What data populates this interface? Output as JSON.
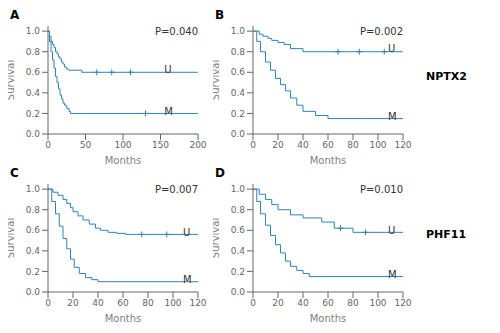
{
  "chart_data": [
    {
      "type": "step",
      "title": "A",
      "x_label": "Months",
      "y_label": "Survival",
      "xlim": [
        0,
        200
      ],
      "xticks": [
        0,
        50,
        100,
        150,
        200
      ],
      "ylim": [
        0.0,
        1.05
      ],
      "yticks": [
        {
          "value": 0.0,
          "label": "0.0"
        },
        0.2,
        0.4,
        0.6,
        0.8,
        {
          "value": 1.0,
          "label": "1.0"
        }
      ],
      "series": [
        {
          "x": [
            0,
            2,
            4,
            6,
            8,
            10,
            12,
            14,
            16,
            18,
            20,
            22,
            25,
            28,
            32,
            38,
            45,
            200
          ],
          "values": [
            1.0,
            0.95,
            0.9,
            0.87,
            0.84,
            0.8,
            0.78,
            0.75,
            0.73,
            0.7,
            0.68,
            0.65,
            0.63,
            0.62,
            0.62,
            0.62,
            0.6,
            0.6
          ],
          "censor_x": [
            65,
            85,
            110
          ],
          "censor_y": [
            0.6,
            0.6,
            0.6
          ]
        },
        {
          "x": [
            0,
            2,
            4,
            6,
            8,
            10,
            12,
            14,
            16,
            18,
            20,
            22,
            25,
            28,
            30,
            35,
            42,
            50,
            200
          ],
          "values": [
            1.0,
            0.9,
            0.8,
            0.72,
            0.64,
            0.56,
            0.5,
            0.44,
            0.38,
            0.34,
            0.3,
            0.28,
            0.25,
            0.22,
            0.2,
            0.2,
            0.2,
            0.2,
            0.2
          ],
          "censor_x": [
            130
          ],
          "censor_y": [
            0.2
          ]
        }
      ],
      "annotations": [
        {
          "text": "P=0.040"
        },
        {
          "text": "U",
          "x": 155,
          "y": 0.63
        },
        {
          "text": "M",
          "x": 155,
          "y": 0.22
        }
      ]
    },
    {
      "type": "step",
      "title": "B",
      "x_label": "Months",
      "y_label": "Survival",
      "side_label": "NPTX2",
      "xlim": [
        0,
        120
      ],
      "xticks": [
        0,
        20,
        40,
        60,
        80,
        100,
        120
      ],
      "ylim": [
        0.0,
        1.05
      ],
      "yticks": [
        {
          "value": 0.0,
          "label": "0.0"
        },
        0.2,
        0.4,
        0.6,
        0.8,
        {
          "value": 1.0,
          "label": "1.0"
        }
      ],
      "series": [
        {
          "x": [
            0,
            5,
            8,
            12,
            15,
            20,
            25,
            30,
            40,
            120
          ],
          "values": [
            1.0,
            0.97,
            0.95,
            0.93,
            0.91,
            0.89,
            0.87,
            0.83,
            0.8,
            0.8
          ],
          "censor_x": [
            68,
            85,
            105
          ],
          "censor_y": [
            0.8,
            0.8,
            0.8
          ]
        },
        {
          "x": [
            0,
            3,
            6,
            10,
            14,
            18,
            22,
            26,
            30,
            35,
            40,
            50,
            60,
            75,
            90,
            120
          ],
          "values": [
            1.0,
            0.9,
            0.8,
            0.7,
            0.62,
            0.54,
            0.48,
            0.42,
            0.35,
            0.28,
            0.22,
            0.18,
            0.15,
            0.15,
            0.15,
            0.15
          ],
          "censor_x": [],
          "censor_y": []
        }
      ],
      "annotations": [
        {
          "text": "P=0.002"
        },
        {
          "text": "U",
          "x": 108,
          "y": 0.83
        },
        {
          "text": "M",
          "x": 108,
          "y": 0.17
        }
      ]
    },
    {
      "type": "step",
      "title": "C",
      "x_label": "Months",
      "y_label": "Survival",
      "xlim": [
        0,
        120
      ],
      "xticks": [
        0,
        20,
        40,
        60,
        80,
        100,
        120
      ],
      "ylim": [
        0.0,
        1.05
      ],
      "yticks": [
        {
          "value": 0.0,
          "label": "0.0"
        },
        0.2,
        0.4,
        0.6,
        0.8,
        {
          "value": 1.0,
          "label": "1.0"
        }
      ],
      "series": [
        {
          "x": [
            0,
            4,
            8,
            12,
            15,
            18,
            20,
            24,
            28,
            33,
            38,
            42,
            48,
            55,
            62,
            70,
            80,
            120
          ],
          "values": [
            1.0,
            0.97,
            0.94,
            0.9,
            0.86,
            0.82,
            0.78,
            0.74,
            0.7,
            0.66,
            0.62,
            0.6,
            0.58,
            0.57,
            0.56,
            0.56,
            0.56,
            0.56
          ],
          "censor_x": [
            75,
            95
          ],
          "censor_y": [
            0.56,
            0.56
          ]
        },
        {
          "x": [
            0,
            3,
            6,
            9,
            12,
            15,
            18,
            21,
            25,
            30,
            35,
            40,
            120
          ],
          "values": [
            1.0,
            0.88,
            0.76,
            0.64,
            0.52,
            0.42,
            0.32,
            0.24,
            0.18,
            0.14,
            0.12,
            0.1,
            0.1
          ],
          "censor_x": [],
          "censor_y": []
        }
      ],
      "annotations": [
        {
          "text": "P=0.007"
        },
        {
          "text": "U",
          "x": 108,
          "y": 0.58
        },
        {
          "text": "M",
          "x": 108,
          "y": 0.12
        }
      ]
    },
    {
      "type": "step",
      "title": "D",
      "x_label": "Months",
      "y_label": "Survival",
      "side_label": "PHF11",
      "xlim": [
        0,
        120
      ],
      "xticks": [
        0,
        20,
        40,
        60,
        80,
        100,
        120
      ],
      "ylim": [
        0.0,
        1.05
      ],
      "yticks": [
        {
          "value": 0.0,
          "label": "0.0"
        },
        0.2,
        0.4,
        0.6,
        0.8,
        {
          "value": 1.0,
          "label": "1.0"
        }
      ],
      "series": [
        {
          "x": [
            0,
            5,
            10,
            15,
            20,
            30,
            40,
            55,
            65,
            80,
            120
          ],
          "values": [
            1.0,
            0.95,
            0.9,
            0.85,
            0.8,
            0.75,
            0.72,
            0.68,
            0.62,
            0.58,
            0.58
          ],
          "censor_x": [
            70,
            90
          ],
          "censor_y": [
            0.62,
            0.58
          ]
        },
        {
          "x": [
            0,
            3,
            6,
            10,
            14,
            18,
            22,
            26,
            30,
            35,
            40,
            45,
            120
          ],
          "values": [
            1.0,
            0.88,
            0.76,
            0.65,
            0.55,
            0.46,
            0.38,
            0.3,
            0.25,
            0.21,
            0.18,
            0.15,
            0.15
          ],
          "censor_x": [],
          "censor_y": []
        }
      ],
      "annotations": [
        {
          "text": "P=0.010"
        },
        {
          "text": "U",
          "x": 108,
          "y": 0.6
        },
        {
          "text": "M",
          "x": 108,
          "y": 0.17
        }
      ]
    }
  ]
}
